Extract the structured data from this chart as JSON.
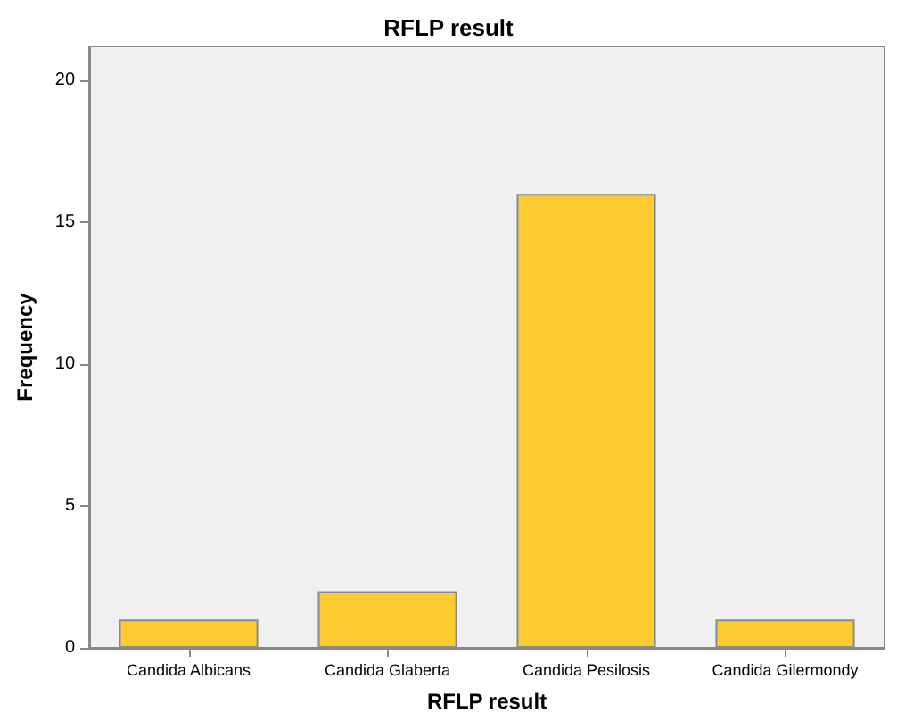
{
  "chart_data": {
    "type": "bar",
    "title": "RFLP result",
    "xlabel": "RFLP result",
    "ylabel": "Frequency",
    "categories": [
      "Candida Albicans",
      "Candida Glaberta",
      "Candida Pesilosis",
      "Candida Gilermondy"
    ],
    "values": [
      1,
      2,
      16,
      1
    ],
    "color": "#fdcc33",
    "ylim": [
      0,
      21.2
    ],
    "yticks": [
      0,
      5,
      10,
      15,
      20
    ],
    "grid": false
  }
}
